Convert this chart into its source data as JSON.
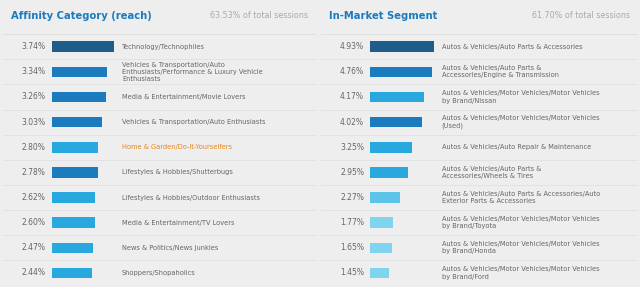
{
  "left_title": "Affinity Category (reach)",
  "left_subtitle": "63.53% of total sessions",
  "left_data": [
    {
      "pct": "3.74%",
      "value": 3.74,
      "label": "Technology/Technophiles",
      "color": "#1e5c8a",
      "label_color": "#666666"
    },
    {
      "pct": "3.34%",
      "value": 3.34,
      "label": "Vehicles & Transportation/Auto\nEnthusiasts/Performance & Luxury Vehicle\nEnthusiasts",
      "color": "#1a7bbf",
      "label_color": "#666666"
    },
    {
      "pct": "3.26%",
      "value": 3.26,
      "label": "Media & Entertainment/Movie Lovers",
      "color": "#1a7bbf",
      "label_color": "#666666"
    },
    {
      "pct": "3.03%",
      "value": 3.03,
      "label": "Vehicles & Transportation/Auto Enthusiasts",
      "color": "#1a7bbf",
      "label_color": "#666666"
    },
    {
      "pct": "2.80%",
      "value": 2.8,
      "label": "Home & Garden/Do-It-Yourselfers",
      "color": "#29a8e0",
      "label_color": "#e8861a"
    },
    {
      "pct": "2.78%",
      "value": 2.78,
      "label": "Lifestyles & Hobbies/Shutterbugs",
      "color": "#1a7bbf",
      "label_color": "#666666"
    },
    {
      "pct": "2.62%",
      "value": 2.62,
      "label": "Lifestyles & Hobbies/Outdoor Enthusiasts",
      "color": "#29a8e0",
      "label_color": "#666666"
    },
    {
      "pct": "2.60%",
      "value": 2.6,
      "label": "Media & Entertainment/TV Lovers",
      "color": "#29a8e0",
      "label_color": "#666666"
    },
    {
      "pct": "2.47%",
      "value": 2.47,
      "label": "News & Politics/News Junkies",
      "color": "#29a8e0",
      "label_color": "#666666"
    },
    {
      "pct": "2.44%",
      "value": 2.44,
      "label": "Shoppers/Shopaholics",
      "color": "#29a8e0",
      "label_color": "#666666"
    }
  ],
  "right_title": "In-Market Segment",
  "right_subtitle": "61.70% of total sessions",
  "right_data": [
    {
      "pct": "4.93%",
      "value": 4.93,
      "label": "Autos & Vehicles/Auto Parts & Accessories",
      "color": "#1e5c8a",
      "label_color": "#666666"
    },
    {
      "pct": "4.76%",
      "value": 4.76,
      "label": "Autos & Vehicles/Auto Parts &\nAccessories/Engine & Transmission",
      "color": "#1a7bbf",
      "label_color": "#666666"
    },
    {
      "pct": "4.17%",
      "value": 4.17,
      "label": "Autos & Vehicles/Motor Vehicles/Motor Vehicles\nby Brand/Nissan",
      "color": "#29a8e0",
      "label_color": "#666666"
    },
    {
      "pct": "4.02%",
      "value": 4.02,
      "label": "Autos & Vehicles/Motor Vehicles/Motor Vehicles\n(Used)",
      "color": "#1a7bbf",
      "label_color": "#666666"
    },
    {
      "pct": "3.25%",
      "value": 3.25,
      "label": "Autos & Vehicles/Auto Repair & Maintenance",
      "color": "#29a8e0",
      "label_color": "#666666"
    },
    {
      "pct": "2.95%",
      "value": 2.95,
      "label": "Autos & Vehicles/Auto Parts &\nAccessories/Wheels & Tires",
      "color": "#29a8e0",
      "label_color": "#666666"
    },
    {
      "pct": "2.27%",
      "value": 2.27,
      "label": "Autos & Vehicles/Auto Parts & Accessories/Auto\nExterior Parts & Accessories",
      "color": "#5cc4e8",
      "label_color": "#666666"
    },
    {
      "pct": "1.77%",
      "value": 1.77,
      "label": "Autos & Vehicles/Motor Vehicles/Motor Vehicles\nby Brand/Toyota",
      "color": "#80d4f0",
      "label_color": "#666666"
    },
    {
      "pct": "1.65%",
      "value": 1.65,
      "label": "Autos & Vehicles/Motor Vehicles/Motor Vehicles\nby Brand/Honda",
      "color": "#80d4f0",
      "label_color": "#666666"
    },
    {
      "pct": "1.45%",
      "value": 1.45,
      "label": "Autos & Vehicles/Motor Vehicles/Motor Vehicles\nby Brand/Ford",
      "color": "#80d4f0",
      "label_color": "#666666"
    }
  ],
  "bg_color": "#eeeeee",
  "panel_color": "#ffffff",
  "title_color": "#1a7bbf",
  "subtitle_color": "#aaaaaa",
  "pct_color": "#666666",
  "divider_color": "#dddddd",
  "gap_color": "#eeeeee"
}
